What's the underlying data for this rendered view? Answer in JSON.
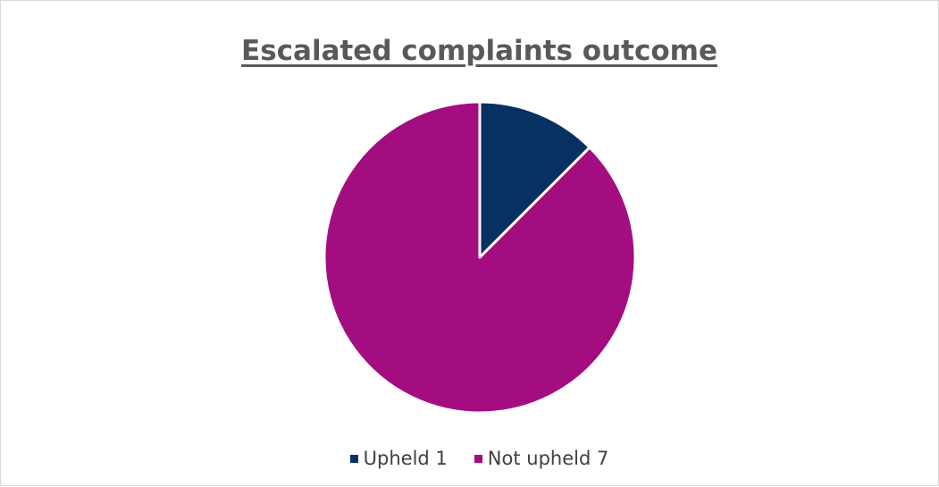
{
  "chart_data": {
    "type": "pie",
    "title": "Escalated complaints outcome",
    "categories": [
      "Upheld 1",
      "Not upheld 7"
    ],
    "values": [
      1,
      7
    ],
    "colors": [
      "#073163",
      "#a30d80"
    ],
    "legend_position": "bottom",
    "slice_border_color": "#ffffff"
  }
}
